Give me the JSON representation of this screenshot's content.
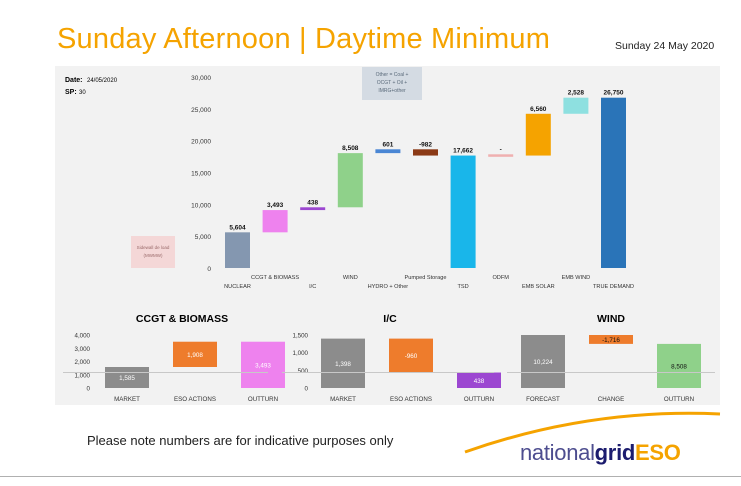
{
  "header": {
    "title": "Sunday Afternoon | Daytime Minimum",
    "date": "Sunday 24 May 2020"
  },
  "info": {
    "date_label": "Date:",
    "date_value": "24/05/2020",
    "sp_label": "SP:",
    "sp_value": "30"
  },
  "annotations": {
    "other_lines": [
      "Other = Coal +",
      "OCGT + Oil +",
      "IMRG+other"
    ],
    "sidewall_lines": [
      "Sidewall de load",
      "(MWMW)"
    ]
  },
  "colors": {
    "nuclear": "#8497b0",
    "ccgt": "#ee82ee",
    "ic": "#9c47d1",
    "wind": "#8fd18a",
    "hydro": "#4a86d4",
    "pumped": "#8b3a16",
    "tsd": "#19b6ea",
    "odfm": "#f0b0b0",
    "emb_solar": "#f5a300",
    "emb_wind": "#8ee0e0",
    "true_demand": "#2a74b8",
    "grey": "#8c8c8c",
    "orange": "#ee7c2c",
    "purple": "#9c47d1",
    "magenta": "#ee82ee",
    "green": "#8fd18a",
    "title_orange": "#f5a300"
  },
  "chart_data": [
    {
      "type": "bar",
      "subtype": "waterfall",
      "ylim": [
        0,
        30000
      ],
      "yticks": [
        "0",
        "5,000",
        "10,000",
        "15,000",
        "20,000",
        "25,000",
        "30,000"
      ],
      "categories": [
        "NUCLEAR",
        "CCGT & BIOMASS",
        "I/C",
        "WIND",
        "HYDRO + Other",
        "Pumped Storage",
        "TSD",
        "ODFM",
        "EMB SOLAR",
        "EMB WIND",
        "TRUE DEMAND"
      ],
      "labels": [
        "5,604",
        "3,493",
        "438",
        "8,508",
        "601",
        "-982",
        "17,662",
        "-",
        "6,560",
        "2,528",
        "26,750"
      ],
      "start": [
        0,
        5604,
        9097,
        9535,
        18043,
        17662,
        0,
        17662,
        17662,
        24222,
        0
      ],
      "end": [
        5604,
        9097,
        9535,
        18043,
        18644,
        18644,
        17662,
        17662,
        24222,
        26750,
        26750
      ],
      "grid": false,
      "legend": "none"
    },
    {
      "type": "bar",
      "title": "CCGT & BIOMASS",
      "ylim": [
        0,
        4000
      ],
      "yticks": [
        "0",
        "1,000",
        "2,000",
        "3,000",
        "4,000"
      ],
      "categories": [
        "MARKET",
        "ESO ACTIONS",
        "OUTTURN"
      ],
      "labels": [
        "1,585",
        "1,908",
        "3,493"
      ],
      "start": [
        0,
        1585,
        0
      ],
      "end": [
        1585,
        3493,
        3493
      ]
    },
    {
      "type": "bar",
      "title": "I/C",
      "ylim": [
        0,
        1500
      ],
      "yticks": [
        "0",
        "500",
        "1,000",
        "1,500"
      ],
      "categories": [
        "MARKET",
        "ESO ACTIONS",
        "OUTTURN"
      ],
      "labels": [
        "1,398",
        "-960",
        "438"
      ],
      "start": [
        0,
        1398,
        0
      ],
      "end": [
        1398,
        438,
        438
      ]
    },
    {
      "type": "bar",
      "title": "WIND",
      "ylim": [
        0,
        10224
      ],
      "categories": [
        "FORECAST",
        "CHANGE",
        "OUTTURN"
      ],
      "labels": [
        "10,224",
        "-1,716",
        "8,508"
      ],
      "start": [
        0,
        10224,
        0
      ],
      "end": [
        10224,
        8508,
        8508
      ]
    }
  ],
  "footer": {
    "note": "Please note numbers are for indicative purposes only",
    "logo_part1": "national",
    "logo_part2": "grid",
    "logo_part3": "ESO"
  }
}
